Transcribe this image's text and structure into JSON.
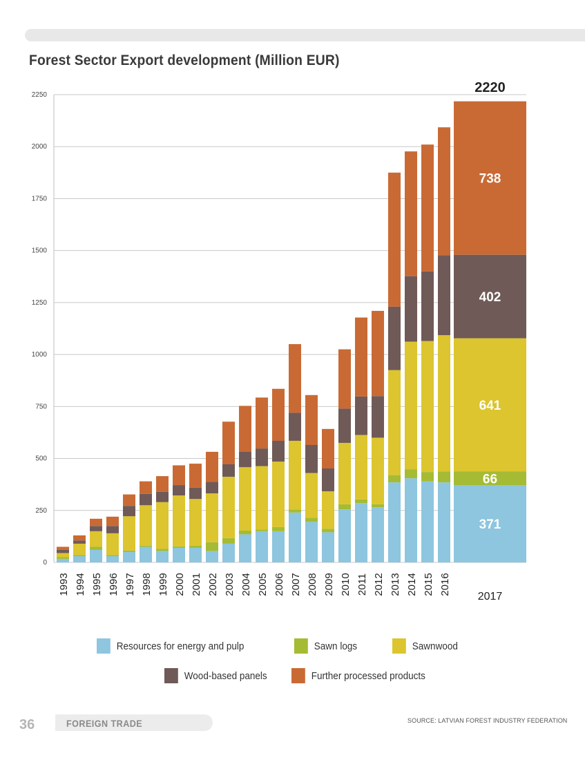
{
  "chart_data": {
    "type": "bar",
    "stacked": true,
    "title": "Forest Sector Export development (Million EUR)",
    "categories": [
      "1993",
      "1994",
      "1995",
      "1996",
      "1997",
      "1998",
      "1999",
      "2000",
      "2001",
      "2002",
      "2003",
      "2004",
      "2005",
      "2006",
      "2007",
      "2008",
      "2009",
      "2010",
      "2011",
      "2012",
      "2013",
      "2014",
      "2015",
      "2016",
      "2017"
    ],
    "series": [
      {
        "name": "Resources for energy and pulp",
        "color": "#8ec5df",
        "values": [
          17,
          30,
          60,
          30,
          50,
          75,
          55,
          70,
          70,
          55,
          90,
          135,
          150,
          150,
          240,
          195,
          145,
          255,
          285,
          265,
          385,
          405,
          390,
          385,
          371
        ]
      },
      {
        "name": "Sawn logs",
        "color": "#a5bb34",
        "values": [
          8,
          5,
          15,
          5,
          7,
          5,
          10,
          7,
          10,
          42,
          27,
          18,
          8,
          20,
          15,
          20,
          17,
          25,
          18,
          15,
          35,
          42,
          45,
          53,
          66
        ]
      },
      {
        "name": "Sawnwood",
        "color": "#dcc52e",
        "values": [
          20,
          55,
          75,
          105,
          165,
          195,
          225,
          245,
          225,
          235,
          295,
          305,
          305,
          315,
          330,
          215,
          180,
          295,
          310,
          320,
          505,
          615,
          630,
          655,
          641
        ]
      },
      {
        "name": "Wood-based panels",
        "color": "#6f5a57",
        "values": [
          15,
          15,
          25,
          35,
          50,
          55,
          50,
          50,
          55,
          55,
          60,
          75,
          85,
          100,
          135,
          135,
          110,
          165,
          185,
          200,
          305,
          315,
          335,
          385,
          402
        ]
      },
      {
        "name": "Further processed products",
        "color": "#c96a34",
        "values": [
          15,
          25,
          35,
          45,
          55,
          60,
          75,
          95,
          115,
          145,
          205,
          220,
          245,
          250,
          330,
          240,
          190,
          285,
          380,
          410,
          645,
          600,
          610,
          615,
          738
        ]
      }
    ],
    "ylim": [
      0,
      2250
    ],
    "yticks": [
      0,
      250,
      500,
      750,
      1000,
      1250,
      1500,
      1750,
      2000,
      2250
    ],
    "grid": true,
    "highlight": {
      "category": "2017",
      "total_label": "2220",
      "segment_labels": [
        "371",
        "66",
        "641",
        "402",
        "738"
      ]
    },
    "legend_position": "bottom"
  },
  "footer": {
    "page_number": "36",
    "section": "FOREIGN TRADE",
    "source": "SOURCE: LATVIAN FOREST INDUSTRY FEDERATION"
  }
}
